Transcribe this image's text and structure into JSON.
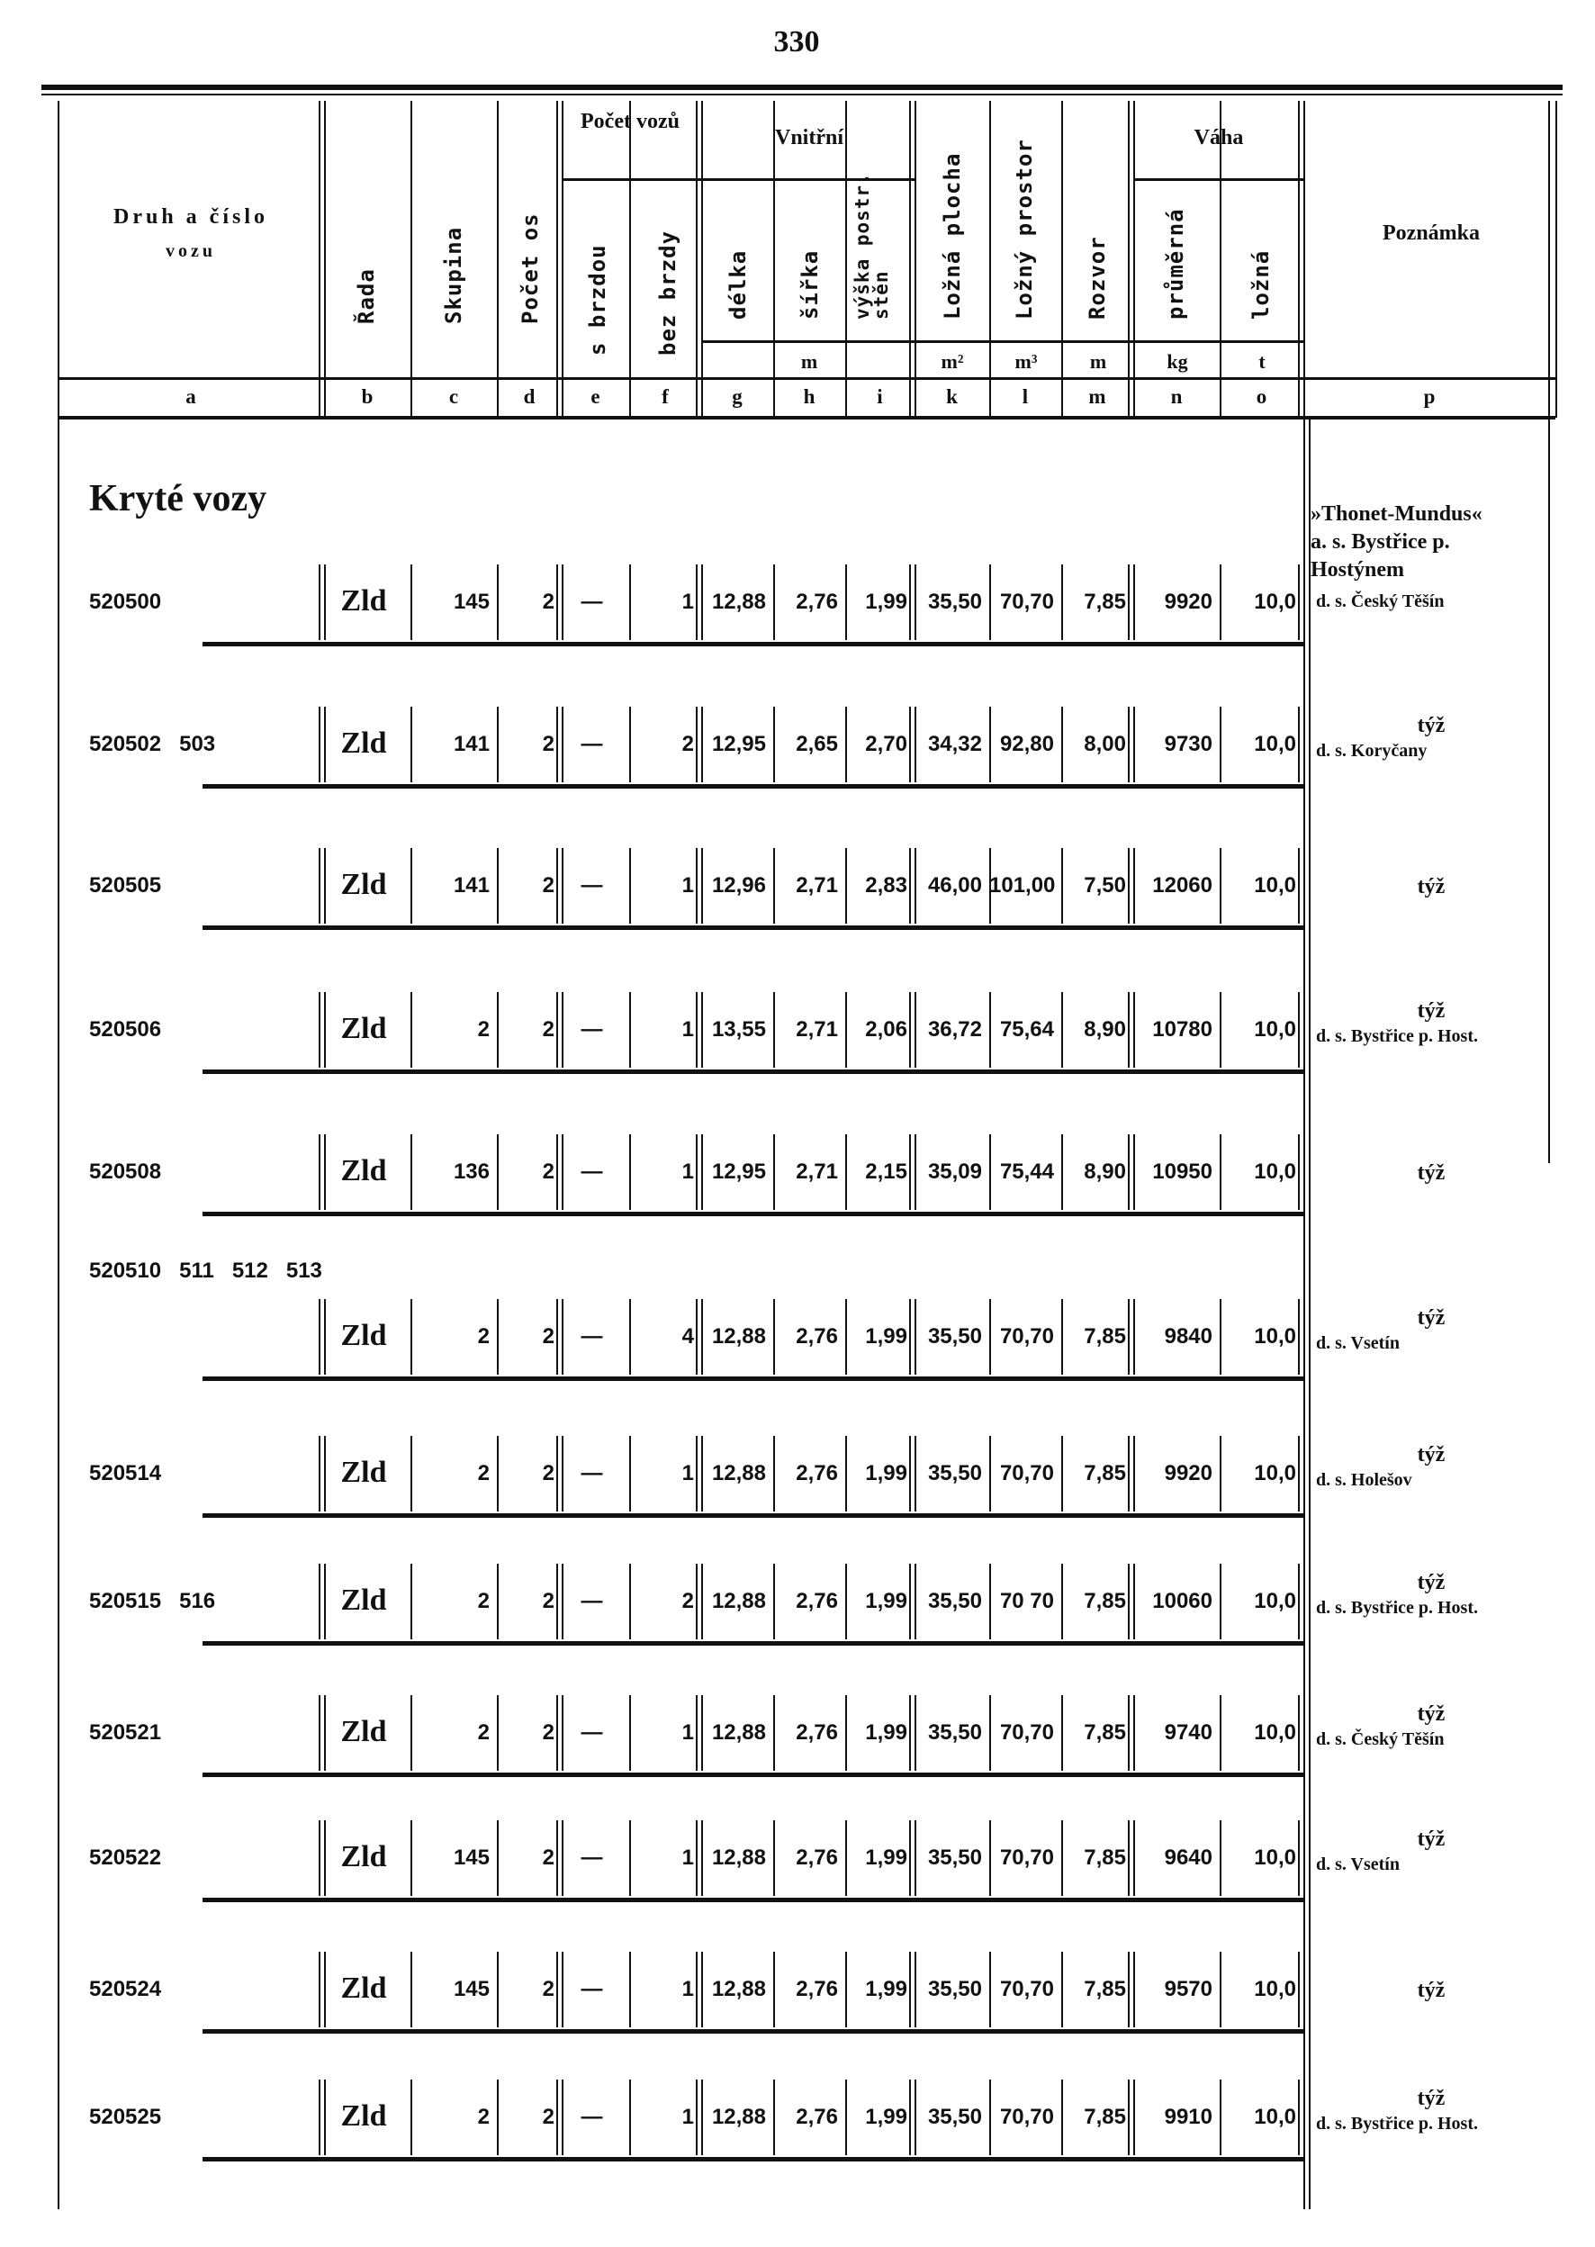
{
  "page_number": "330",
  "header": {
    "druh": "Druh a číslo",
    "druh2": "vozu",
    "rada": "Řada",
    "skupina": "Skupina",
    "pocet_os": "Počet os",
    "pocet_vozu": "Počet vozů",
    "s_brzdou": "s brzdou",
    "bez_brzdy": "bez brzdy",
    "vnitrni": "Vnitřní",
    "delka": "délka",
    "sirka": "šířka",
    "vyska": "výška postr. stěn",
    "lozna_plocha": "Ložná plocha",
    "lozny_prostor": "Ložný prostor",
    "rozvor": "Rozvor",
    "vaha": "Váha",
    "prumerna": "průměrná",
    "lozna": "ložná",
    "poznamka": "Poznámka",
    "unit_m": "m",
    "unit_m2": "m²",
    "unit_m3": "m³",
    "unit_m_rozvor": "m",
    "unit_kg": "kg",
    "unit_t": "t"
  },
  "column_letters": [
    "a",
    "b",
    "c",
    "d",
    "e",
    "f",
    "g",
    "h",
    "i",
    "k",
    "l",
    "m",
    "n",
    "o",
    "p"
  ],
  "section_title": "Kryté vozy",
  "notes_header": [
    "»Thonet-Mundus«",
    "a. s. Bystřice p.",
    "Hostýnem"
  ],
  "rows": [
    {
      "ids": "520500",
      "rada": "Zld",
      "skupina": "145",
      "osy": "2",
      "s_brzdou": "—",
      "bez_brzdy": "1",
      "delka": "12,88",
      "sirka": "2,76",
      "vyska": "1,99",
      "plocha": "35,50",
      "prostor": "70,70",
      "rozvor": "7,85",
      "prumerna": "9920",
      "lozna": "10,0",
      "tyz": "",
      "note": "d. s. Český Těšín"
    },
    {
      "ids": "520502   503",
      "rada": "Zld",
      "skupina": "141",
      "osy": "2",
      "s_brzdou": "—",
      "bez_brzdy": "2",
      "delka": "12,95",
      "sirka": "2,65",
      "vyska": "2,70",
      "plocha": "34,32",
      "prostor": "92,80",
      "rozvor": "8,00",
      "prumerna": "9730",
      "lozna": "10,0",
      "tyz": "týž",
      "note": "d. s. Koryčany"
    },
    {
      "ids": "520505",
      "rada": "Zld",
      "skupina": "141",
      "osy": "2",
      "s_brzdou": "—",
      "bez_brzdy": "1",
      "delka": "12,96",
      "sirka": "2,71",
      "vyska": "2,83",
      "plocha": "46,00",
      "prostor": "101,00",
      "rozvor": "7,50",
      "prumerna": "12060",
      "lozna": "10,0",
      "tyz": "týž",
      "note": ""
    },
    {
      "ids": "520506",
      "rada": "Zld",
      "skupina": "2",
      "osy": "2",
      "s_brzdou": "—",
      "bez_brzdy": "1",
      "delka": "13,55",
      "sirka": "2,71",
      "vyska": "2,06",
      "plocha": "36,72",
      "prostor": "75,64",
      "rozvor": "8,90",
      "prumerna": "10780",
      "lozna": "10,0",
      "tyz": "týž",
      "note": "d. s. Bystřice p. Host."
    },
    {
      "ids": "520508",
      "rada": "Zld",
      "skupina": "136",
      "osy": "2",
      "s_brzdou": "—",
      "bez_brzdy": "1",
      "delka": "12,95",
      "sirka": "2,71",
      "vyska": "2,15",
      "plocha": "35,09",
      "prostor": "75,44",
      "rozvor": "8,90",
      "prumerna": "10950",
      "lozna": "10,0",
      "tyz": "týž",
      "note": ""
    },
    {
      "ids": "520510   511   512   513",
      "rada": "Zld",
      "skupina": "2",
      "osy": "2",
      "s_brzdou": "—",
      "bez_brzdy": "4",
      "delka": "12,88",
      "sirka": "2,76",
      "vyska": "1,99",
      "plocha": "35,50",
      "prostor": "70,70",
      "rozvor": "7,85",
      "prumerna": "9840",
      "lozna": "10,0",
      "tyz": "týž",
      "note": "d. s. Vsetín"
    },
    {
      "ids": "520514",
      "rada": "Zld",
      "skupina": "2",
      "osy": "2",
      "s_brzdou": "—",
      "bez_brzdy": "1",
      "delka": "12,88",
      "sirka": "2,76",
      "vyska": "1,99",
      "plocha": "35,50",
      "prostor": "70,70",
      "rozvor": "7,85",
      "prumerna": "9920",
      "lozna": "10,0",
      "tyz": "týž",
      "note": "d. s. Holešov"
    },
    {
      "ids": "520515   516",
      "rada": "Zld",
      "skupina": "2",
      "osy": "2",
      "s_brzdou": "—",
      "bez_brzdy": "2",
      "delka": "12,88",
      "sirka": "2,76",
      "vyska": "1,99",
      "plocha": "35,50",
      "prostor": "70 70",
      "rozvor": "7,85",
      "prumerna": "10060",
      "lozna": "10,0",
      "tyz": "týž",
      "note": "d. s. Bystřice p. Host."
    },
    {
      "ids": "520521",
      "rada": "Zld",
      "skupina": "2",
      "osy": "2",
      "s_brzdou": "—",
      "bez_brzdy": "1",
      "delka": "12,88",
      "sirka": "2,76",
      "vyska": "1,99",
      "plocha": "35,50",
      "prostor": "70,70",
      "rozvor": "7,85",
      "prumerna": "9740",
      "lozna": "10,0",
      "tyz": "týž",
      "note": "d. s. Český Těšín"
    },
    {
      "ids": "520522",
      "rada": "Zld",
      "skupina": "145",
      "osy": "2",
      "s_brzdou": "—",
      "bez_brzdy": "1",
      "delka": "12,88",
      "sirka": "2,76",
      "vyska": "1,99",
      "plocha": "35,50",
      "prostor": "70,70",
      "rozvor": "7,85",
      "prumerna": "9640",
      "lozna": "10,0",
      "tyz": "týž",
      "note": "d. s. Vsetín"
    },
    {
      "ids": "520524",
      "rada": "Zld",
      "skupina": "145",
      "osy": "2",
      "s_brzdou": "—",
      "bez_brzdy": "1",
      "delka": "12,88",
      "sirka": "2,76",
      "vyska": "1,99",
      "plocha": "35,50",
      "prostor": "70,70",
      "rozvor": "7,85",
      "prumerna": "9570",
      "lozna": "10,0",
      "tyz": "týž",
      "note": ""
    },
    {
      "ids": "520525",
      "rada": "Zld",
      "skupina": "2",
      "osy": "2",
      "s_brzdou": "—",
      "bez_brzdy": "1",
      "delka": "12,88",
      "sirka": "2,76",
      "vyska": "1,99",
      "plocha": "35,50",
      "prostor": "70,70",
      "rozvor": "7,85",
      "prumerna": "9910",
      "lozna": "10,0",
      "tyz": "týž",
      "note": "d. s. Bystřice p. Host."
    }
  ]
}
